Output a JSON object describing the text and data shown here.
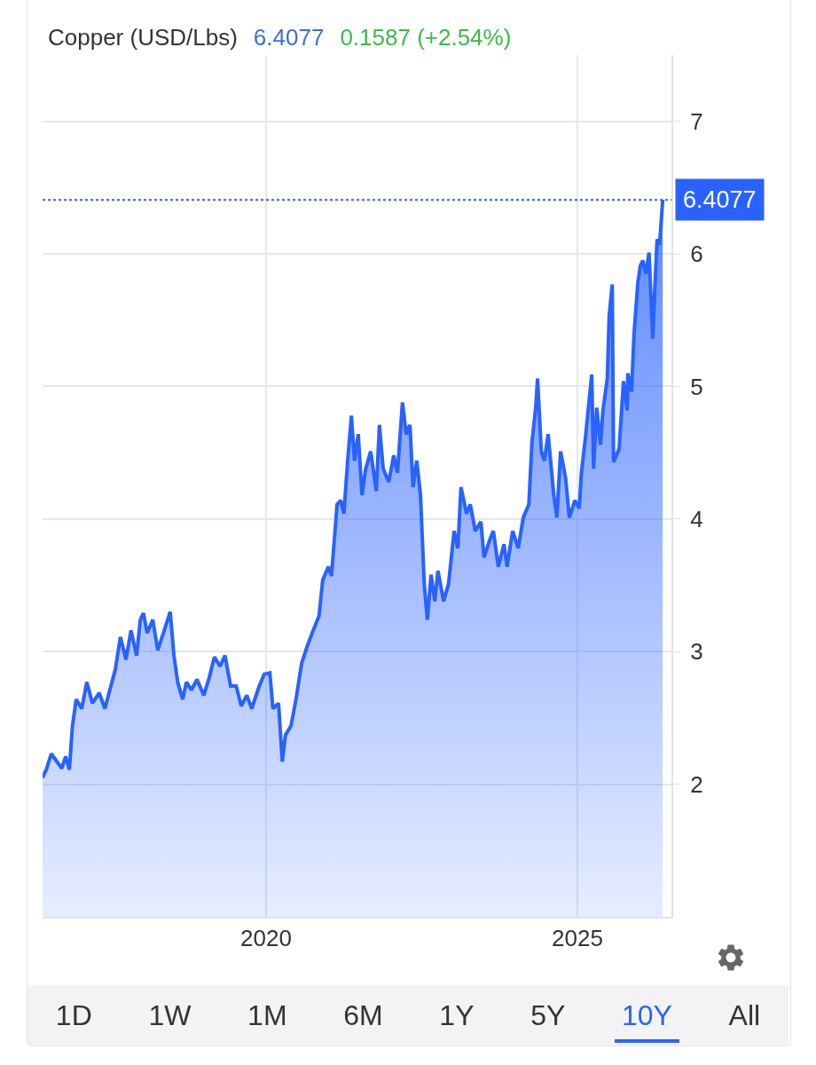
{
  "chart_data": {
    "type": "area",
    "title": "Copper (USD/Lbs)",
    "annotations": [
      "6.4077",
      "0.1587 (+2.54%)",
      "1D",
      "1W",
      "1M",
      "6M",
      "1Y",
      "5Y",
      "10Y",
      "All"
    ],
    "xlim": [
      2016.41,
      2026.51
    ],
    "xticks": [
      2020,
      2025
    ],
    "ylim": [
      1.0,
      7.5
    ],
    "yticks": [
      2,
      3,
      4,
      5,
      6,
      7
    ],
    "grid": true,
    "marker": "none",
    "line_style": "solid",
    "ref_lines": [
      {
        "axis": "y",
        "value": 6.4077,
        "label": "6.4077",
        "color": "#2962ff",
        "line_style": "dotted"
      }
    ],
    "series": [
      {
        "color": "#2962ff",
        "x": [
          2016.41,
          2016.47,
          2016.55,
          2016.64,
          2016.72,
          2016.78,
          2016.84,
          2016.89,
          2016.95,
          2017.04,
          2017.12,
          2017.21,
          2017.32,
          2017.41,
          2017.49,
          2017.58,
          2017.66,
          2017.75,
          2017.83,
          2017.92,
          2017.98,
          2018.03,
          2018.09,
          2018.18,
          2018.26,
          2018.35,
          2018.46,
          2018.52,
          2018.58,
          2018.66,
          2018.72,
          2018.8,
          2018.89,
          2019.0,
          2019.09,
          2019.17,
          2019.26,
          2019.34,
          2019.43,
          2019.52,
          2019.6,
          2019.69,
          2019.77,
          2019.89,
          2019.97,
          2020.06,
          2020.11,
          2020.2,
          2020.26,
          2020.31,
          2020.4,
          2020.48,
          2020.57,
          2020.66,
          2020.74,
          2020.85,
          2020.91,
          2021.0,
          2021.05,
          2021.14,
          2021.2,
          2021.25,
          2021.31,
          2021.37,
          2021.42,
          2021.48,
          2021.54,
          2021.6,
          2021.68,
          2021.77,
          2021.82,
          2021.88,
          2021.97,
          2022.05,
          2022.11,
          2022.19,
          2022.25,
          2022.31,
          2022.36,
          2022.42,
          2022.48,
          2022.54,
          2022.59,
          2022.65,
          2022.71,
          2022.76,
          2022.85,
          2022.93,
          2023.02,
          2023.08,
          2023.13,
          2023.22,
          2023.28,
          2023.36,
          2023.45,
          2023.5,
          2023.59,
          2023.65,
          2023.73,
          2023.82,
          2023.87,
          2023.96,
          2024.05,
          2024.13,
          2024.22,
          2024.27,
          2024.33,
          2024.36,
          2024.42,
          2024.47,
          2024.53,
          2024.62,
          2024.67,
          2024.73,
          2024.81,
          2024.87,
          2024.96,
          2025.03,
          2025.06,
          2025.13,
          2025.23,
          2025.26,
          2025.31,
          2025.37,
          2025.41,
          2025.48,
          2025.51,
          2025.56,
          2025.58,
          2025.67,
          2025.74,
          2025.8,
          2025.81,
          2025.87,
          2025.91,
          2025.97,
          2026.01,
          2026.05,
          2026.1,
          2026.15,
          2026.21,
          2026.24,
          2026.28,
          2026.32,
          2026.37
        ],
        "values": [
          2.05,
          2.11,
          2.23,
          2.17,
          2.12,
          2.21,
          2.11,
          2.44,
          2.64,
          2.57,
          2.77,
          2.61,
          2.69,
          2.57,
          2.71,
          2.87,
          3.11,
          2.94,
          3.16,
          2.97,
          3.24,
          3.29,
          3.14,
          3.24,
          3.01,
          3.14,
          3.3,
          2.97,
          2.77,
          2.64,
          2.77,
          2.71,
          2.79,
          2.67,
          2.81,
          2.96,
          2.89,
          2.97,
          2.74,
          2.74,
          2.59,
          2.67,
          2.57,
          2.74,
          2.83,
          2.84,
          2.57,
          2.61,
          2.17,
          2.37,
          2.44,
          2.64,
          2.91,
          3.04,
          3.14,
          3.27,
          3.54,
          3.64,
          3.57,
          4.11,
          4.14,
          4.04,
          4.44,
          4.78,
          4.44,
          4.64,
          4.18,
          4.38,
          4.51,
          4.21,
          4.71,
          4.38,
          4.28,
          4.48,
          4.35,
          4.88,
          4.64,
          4.71,
          4.24,
          4.44,
          4.18,
          3.51,
          3.24,
          3.58,
          3.38,
          3.61,
          3.38,
          3.51,
          3.91,
          3.78,
          4.24,
          4.04,
          4.11,
          3.91,
          3.98,
          3.71,
          3.84,
          3.91,
          3.64,
          3.81,
          3.64,
          3.91,
          3.78,
          4.01,
          4.11,
          4.58,
          4.84,
          5.06,
          4.51,
          4.44,
          4.64,
          4.18,
          4.01,
          4.51,
          4.31,
          4.01,
          4.14,
          4.08,
          4.33,
          4.62,
          5.09,
          4.38,
          4.84,
          4.56,
          4.82,
          5.06,
          5.53,
          5.77,
          4.43,
          4.53,
          5.04,
          4.82,
          5.1,
          4.96,
          5.4,
          5.78,
          5.91,
          5.95,
          5.85,
          6.01,
          5.36,
          5.71,
          6.11,
          6.07,
          6.4077
        ]
      }
    ]
  }
}
